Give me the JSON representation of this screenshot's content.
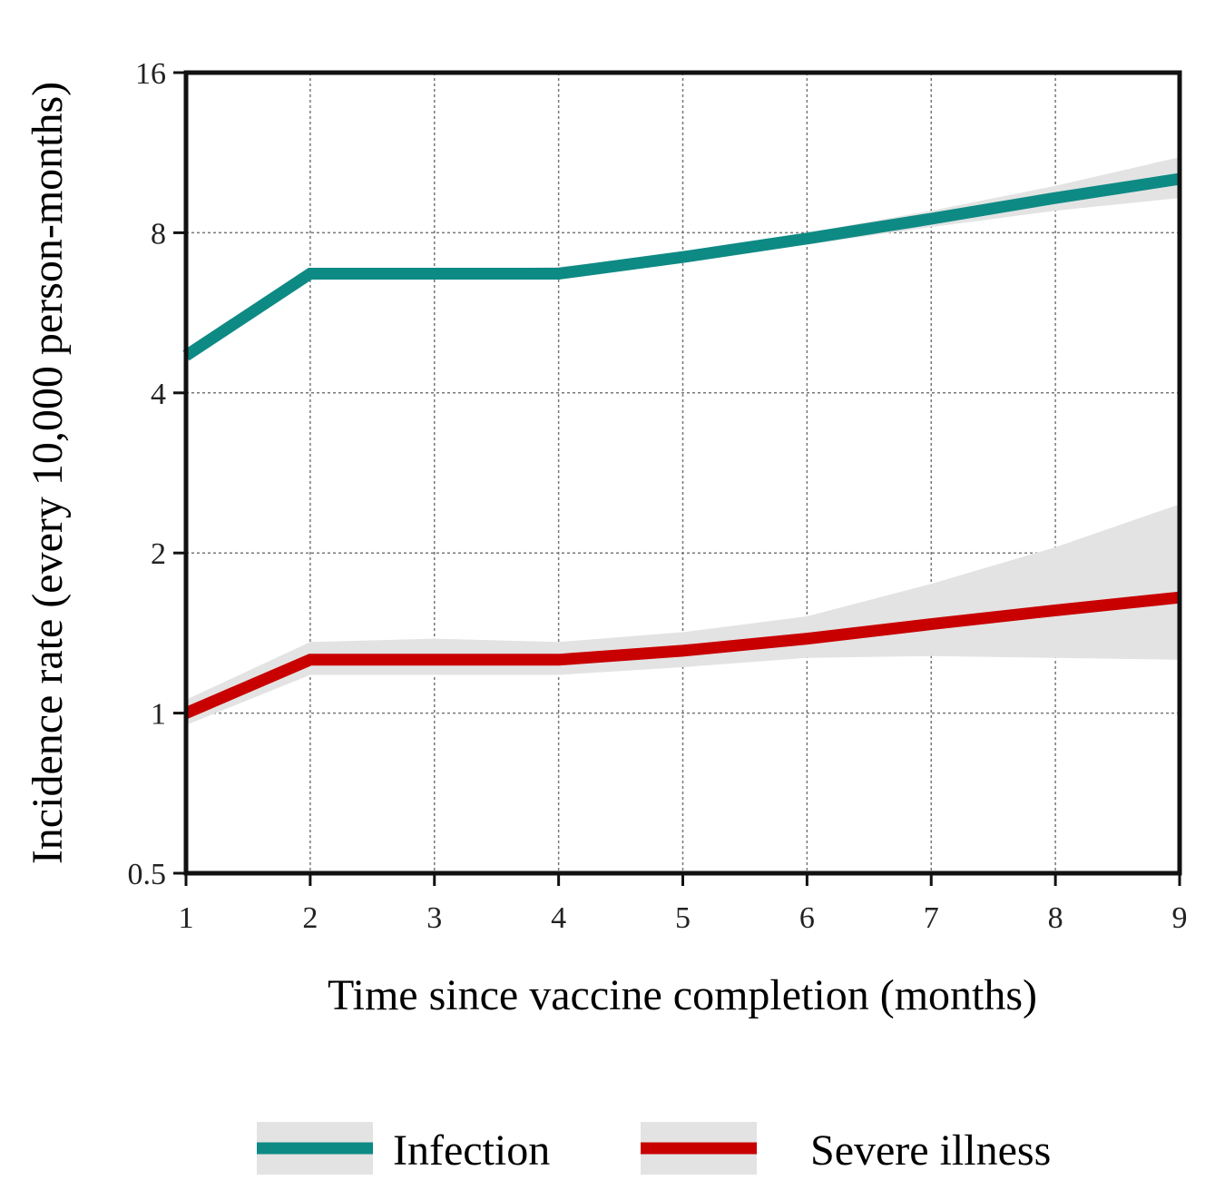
{
  "chart_data": {
    "type": "line",
    "xlabel": "Time since vaccine completion (months)",
    "ylabel": "Incidence rate (every 10,000 person-months)",
    "x_ticks": [
      "1",
      "2",
      "3",
      "4",
      "5",
      "6",
      "7",
      "8",
      "9"
    ],
    "y_ticks": [
      "0.5",
      "1",
      "2",
      "4",
      "8",
      "16"
    ],
    "y_tick_values": [
      0.5,
      1,
      2,
      4,
      8,
      16
    ],
    "yscale": "log2",
    "ylim": [
      0.5,
      16
    ],
    "xlim": [
      1,
      9
    ],
    "grid": true,
    "legend_position": "bottom",
    "series": [
      {
        "name": "Infection",
        "color": "#0e8a84",
        "x": [
          1,
          2,
          3,
          4,
          5,
          6,
          7,
          8,
          9
        ],
        "values": [
          4.7,
          6.7,
          6.7,
          6.7,
          7.2,
          7.8,
          8.5,
          9.3,
          10.1
        ],
        "ci_lower": [
          4.6,
          6.6,
          6.6,
          6.6,
          7.1,
          7.6,
          8.2,
          8.8,
          9.3
        ],
        "ci_upper": [
          4.8,
          6.8,
          6.8,
          6.9,
          7.3,
          8.0,
          8.8,
          9.8,
          11.1
        ]
      },
      {
        "name": "Severe illness",
        "color": "#c80000",
        "x": [
          1,
          2,
          3,
          4,
          5,
          6,
          7,
          8,
          9
        ],
        "values": [
          1.0,
          1.26,
          1.26,
          1.26,
          1.31,
          1.38,
          1.47,
          1.56,
          1.65
        ],
        "ci_lower": [
          0.95,
          1.18,
          1.18,
          1.18,
          1.22,
          1.27,
          1.28,
          1.27,
          1.26
        ],
        "ci_upper": [
          1.06,
          1.36,
          1.38,
          1.36,
          1.42,
          1.52,
          1.75,
          2.05,
          2.47
        ]
      }
    ]
  }
}
